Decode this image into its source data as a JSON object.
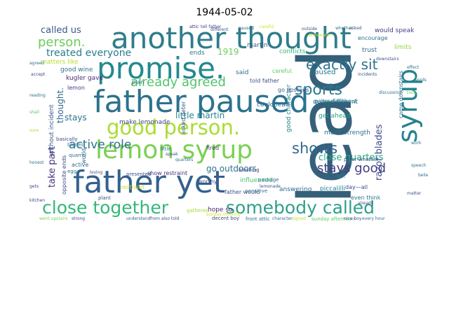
{
  "title": "1944-05-02",
  "words": [
    {
      "text": "lead",
      "color": "#35607a"
    },
    {
      "text": "another thought",
      "color": "#2f7d8a"
    },
    {
      "text": "father paused",
      "color": "#2c728e"
    },
    {
      "text": "promise.",
      "color": "#23898e"
    },
    {
      "text": "father yet",
      "color": "#33618d"
    },
    {
      "text": "lemon syrup",
      "color": "#7ad151"
    },
    {
      "text": "good person.",
      "color": "#aadc32"
    },
    {
      "text": "syrup",
      "color": "#26828e"
    },
    {
      "text": "close together",
      "color": "#35b779"
    },
    {
      "text": "somebody called",
      "color": "#2e9f87"
    },
    {
      "text": "already agreed",
      "color": "#52c569"
    },
    {
      "text": "exactly sit",
      "color": "#2c728e"
    },
    {
      "text": "sports",
      "color": "#2a788e"
    },
    {
      "text": "shows",
      "color": "#31688e"
    },
    {
      "text": "stays good",
      "color": "#433e85"
    },
    {
      "text": "active role",
      "color": "#2d708e"
    },
    {
      "text": "person.",
      "color": "#6ccd5a"
    },
    {
      "text": "called us",
      "color": "#39568c"
    },
    {
      "text": "treated everyone",
      "color": "#287c8e"
    },
    {
      "text": "close quarters",
      "color": "#22a884"
    },
    {
      "text": "go outdoors",
      "color": "#2c718e"
    },
    {
      "text": "razor blades",
      "color": "#3e4a89"
    },
    {
      "text": "little martin",
      "color": "#26828e"
    },
    {
      "text": "take part",
      "color": "#46337e"
    },
    {
      "text": "stays",
      "color": "#2b758e"
    },
    {
      "text": "without incident",
      "color": "#3b528b"
    },
    {
      "text": "thought.",
      "color": "#31688e"
    },
    {
      "text": "1919",
      "color": "#6ece58"
    },
    {
      "text": "make lemonade",
      "color": "#3f4788"
    },
    {
      "text": "good character",
      "color": "#26828e"
    },
    {
      "text": "paused",
      "color": "#2a788e"
    },
    {
      "text": "could lead",
      "color": "#2d708e"
    },
    {
      "text": "quite different",
      "color": "#365c8d"
    },
    {
      "text": "much strength",
      "color": "#2e6e8e"
    },
    {
      "text": "passed without",
      "color": "#20928c"
    },
    {
      "text": "would speak",
      "color": "#424086"
    },
    {
      "text": "encourage",
      "color": "#2d708e"
    },
    {
      "text": "conflicts.",
      "color": "#35b779"
    },
    {
      "text": "ends",
      "color": "#2a788e"
    },
    {
      "text": "martin",
      "color": "#3a538b"
    },
    {
      "text": "trust",
      "color": "#31688e"
    },
    {
      "text": "limits",
      "color": "#8fd744"
    },
    {
      "text": "good wine",
      "color": "#2c728e"
    },
    {
      "text": "kugler gave",
      "color": "#482878"
    },
    {
      "text": "matters like",
      "color": "#b5de2b"
    },
    {
      "text": "lemon",
      "color": "#443983"
    },
    {
      "text": "plan",
      "color": "#2f6c8e"
    },
    {
      "text": "careful.",
      "color": "#5ec962"
    },
    {
      "text": "told father",
      "color": "#3b528b"
    },
    {
      "text": "said",
      "color": "#2e6f8e"
    },
    {
      "text": "go upstairs",
      "color": "#375b8d"
    },
    {
      "text": "get ahead",
      "color": "#1fa187"
    },
    {
      "text": "came downstairs",
      "color": "#2b748e"
    },
    {
      "text": "asked peter",
      "color": "#355f8d"
    },
    {
      "text": "worthy",
      "color": "#3d4d8a"
    },
    {
      "text": "fired",
      "color": "#453781"
    },
    {
      "text": "influenced",
      "color": "#4ac16d"
    },
    {
      "text": "answering",
      "color": "#31688e"
    },
    {
      "text": "piccalilli",
      "color": "#26828e"
    },
    {
      "text": "even think",
      "color": "#2b758e"
    },
    {
      "text": "day—all",
      "color": "#3e4c8a"
    },
    {
      "text": "so.",
      "color": "#287d8e"
    },
    {
      "text": "father would",
      "color": "#3b528b"
    },
    {
      "text": "sensitive",
      "color": "#2f6b8e"
    },
    {
      "text": "package",
      "color": "#2f6b8e"
    },
    {
      "text": "hope so",
      "color": "#482475"
    },
    {
      "text": "gathered",
      "color": "#a5db36"
    },
    {
      "text": "show restraint",
      "color": "#46307e"
    },
    {
      "text": "restraint",
      "color": "#c8e020"
    },
    {
      "text": "opposite ends",
      "color": "#3f4889"
    },
    {
      "text": "active",
      "color": "#2e6f8e"
    },
    {
      "text": "world.",
      "color": "#31688e"
    },
    {
      "text": "quarrel",
      "color": "#2f6b8e"
    },
    {
      "text": "blades",
      "color": "#287c8e"
    },
    {
      "text": "egg",
      "color": "#2d708e"
    },
    {
      "text": "basically",
      "color": "#3e4989"
    },
    {
      "text": "plant",
      "color": "#3b528b"
    },
    {
      "text": "presented",
      "color": "#3b528b"
    },
    {
      "text": "decent boy",
      "color": "#3d4d8a"
    },
    {
      "text": "front attic",
      "color": "#2c728e"
    },
    {
      "text": "blushing",
      "color": "#414487"
    },
    {
      "text": "little",
      "color": "#2d708e"
    },
    {
      "text": "sunday afternoon",
      "color": "#5ec962"
    },
    {
      "text": "peter whether",
      "color": "#3b528b"
    },
    {
      "text": "attic",
      "color": "#482878"
    },
    {
      "text": "tell father",
      "color": "#3f4788"
    },
    {
      "text": "different",
      "color": "#3b528b"
    },
    {
      "text": "paused",
      "color": "#2f6c8e"
    },
    {
      "text": "careful",
      "color": "#d8e219"
    },
    {
      "text": "outside",
      "color": "#3b528b"
    },
    {
      "text": "answered",
      "color": "#c2df23"
    },
    {
      "text": "whether",
      "color": "#2b758e"
    },
    {
      "text": "asked",
      "color": "#3b528b"
    },
    {
      "text": "agreed",
      "color": "#2c728e"
    },
    {
      "text": "accept",
      "color": "#3f4788"
    },
    {
      "text": "effect",
      "color": "#2d708e"
    },
    {
      "text": "took",
      "color": "#6ece58"
    },
    {
      "text": "incidents",
      "color": "#3b528b"
    },
    {
      "text": "understand",
      "color": "#31688e"
    },
    {
      "text": "from also told",
      "color": "#3b528b"
    },
    {
      "text": "sunday morning",
      "color": "#d8e219"
    },
    {
      "text": "character",
      "color": "#2e6f8e"
    },
    {
      "text": "signed",
      "color": "#bddf26"
    },
    {
      "text": "nice boy",
      "color": "#3b528b"
    },
    {
      "text": "every hour",
      "color": "#2d708e"
    },
    {
      "text": "strong",
      "color": "#3e4989"
    },
    {
      "text": "went upstairs",
      "color": "#7ad151"
    },
    {
      "text": "lemonade",
      "color": "#3b528b"
    },
    {
      "text": "reading",
      "color": "#2c728e"
    },
    {
      "text": "speak",
      "color": "#3b528b"
    },
    {
      "text": "quarters",
      "color": "#2e6e8e"
    },
    {
      "text": "shall",
      "color": "#5ec962"
    },
    {
      "text": "speech",
      "color": "#2b748e"
    },
    {
      "text": "sure",
      "color": "#b5de2b"
    },
    {
      "text": "words",
      "color": "#2c728e"
    },
    {
      "text": "loving",
      "color": "#3f4788"
    },
    {
      "text": "honest",
      "color": "#2d708e"
    },
    {
      "text": "matter",
      "color": "#3b528b"
    },
    {
      "text": "gets",
      "color": "#3e4989"
    },
    {
      "text": "believe",
      "color": "#2f6b8e"
    },
    {
      "text": "already",
      "color": "#3b528b"
    },
    {
      "text": "discussing",
      "color": "#2c728e"
    },
    {
      "text": "downstairs",
      "color": "#3b528b"
    },
    {
      "text": "kitchen",
      "color": "#3f4788"
    },
    {
      "text": "work",
      "color": "#2b758e"
    }
  ]
}
